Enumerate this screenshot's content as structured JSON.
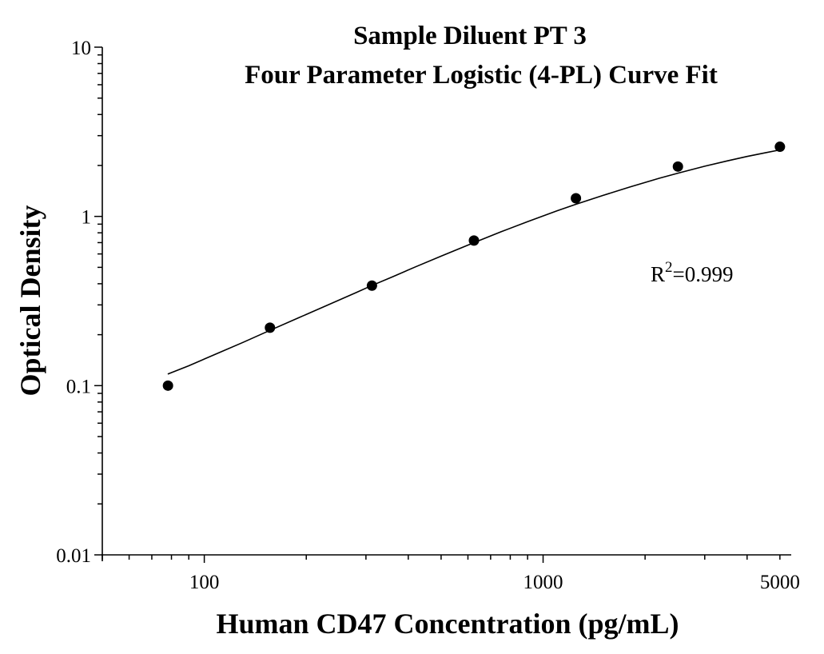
{
  "chart_data": {
    "type": "scatter",
    "title": [
      "Sample Diluent PT 3",
      "Four Parameter Logistic (4-PL) Curve Fit"
    ],
    "xlabel": "Human CD47 Concentration (pg/mL)",
    "ylabel": "Optical Density",
    "x_scale": "log",
    "y_scale": "log",
    "xlim": [
      50,
      5400
    ],
    "ylim": [
      0.01,
      10
    ],
    "x_ticks": [
      {
        "value": 100,
        "label": "100"
      },
      {
        "value": 1000,
        "label": "1000"
      },
      {
        "value": 5000,
        "label": "5000"
      }
    ],
    "y_ticks": [
      {
        "value": 0.01,
        "label": "0.01"
      },
      {
        "value": 0.1,
        "label": "0.1"
      },
      {
        "value": 1,
        "label": "1"
      },
      {
        "value": 10,
        "label": "10"
      }
    ],
    "grid": false,
    "series": [
      {
        "kind": "points",
        "x": [
          78.125,
          156.25,
          312.5,
          625,
          1250,
          2500,
          5000
        ],
        "y": [
          0.1,
          0.22,
          0.39,
          0.72,
          1.28,
          1.97,
          2.58
        ],
        "color": "#000000"
      },
      {
        "kind": "fit-curve",
        "x": [
          78,
          90,
          110,
          130,
          156,
          190,
          230,
          280,
          312,
          360,
          420,
          500,
          625,
          750,
          900,
          1100,
          1250,
          1500,
          1800,
          2200,
          2500,
          3000,
          3500,
          4000,
          4500,
          5000
        ],
        "y": [
          0.117,
          0.131,
          0.156,
          0.18,
          0.212,
          0.252,
          0.298,
          0.354,
          0.39,
          0.44,
          0.503,
          0.582,
          0.7,
          0.81,
          0.93,
          1.08,
          1.18,
          1.33,
          1.49,
          1.68,
          1.8,
          1.98,
          2.13,
          2.26,
          2.37,
          2.47
        ],
        "color": "#000000"
      }
    ],
    "annotation": {
      "text_base": "R",
      "text_sup": "2",
      "text_rest": "=0.999"
    }
  }
}
